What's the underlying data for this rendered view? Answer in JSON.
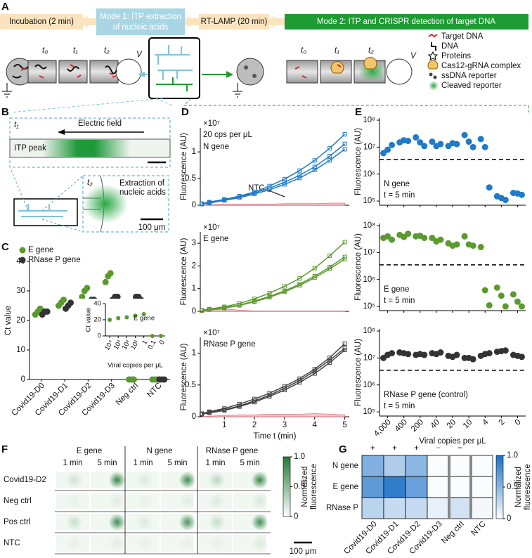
{
  "panel_labels": [
    "A",
    "B",
    "C",
    "D",
    "E",
    "F",
    "G"
  ],
  "panel_a": {
    "steps": [
      "Incubation (2 min)",
      [
        "Mode 1: ITP extraction",
        "of nucleic acids"
      ],
      "RT-LAMP (20 min)",
      "Mode 2: ITP and CRISPR detection of target DNA"
    ],
    "mode1_times": [
      "t₀",
      "t₁",
      "t₂"
    ],
    "mode2_times": [
      "t₀",
      "t₁",
      "t₂"
    ],
    "voltage": [
      "V",
      "V"
    ],
    "legend": [
      "Target DNA",
      "DNA",
      "Proteins",
      "Cas12-gRNA complex",
      "ssDNA reporter",
      "Cleaved reporter"
    ]
  },
  "panel_b": {
    "time_top": "t₁",
    "field": "Electric field",
    "peak": "ITP peak",
    "time_bottom": "t₂",
    "extraction": [
      "Extraction of",
      "nucleic acids"
    ],
    "scale": "100 μm"
  },
  "panel_f": {
    "columns": [
      "E gene",
      "N gene",
      "RNase P gene"
    ],
    "times": [
      "1 min",
      "5 min",
      "1 min",
      "5 min",
      "1 min",
      "5 min"
    ],
    "rows": [
      "Covid19-D2",
      "Neg ctrl",
      "Pos ctrl",
      "NTC"
    ],
    "intensity": [
      [
        0.15,
        0.9,
        0.1,
        0.85,
        0.25,
        0.9
      ],
      [
        0.05,
        0.08,
        0.05,
        0.07,
        0.1,
        0.12
      ],
      [
        0.2,
        0.85,
        0.1,
        0.8,
        0.2,
        0.85
      ],
      [
        0.05,
        0.08,
        0.05,
        0.06,
        0.05,
        0.1
      ]
    ],
    "color": "#1f7a35",
    "colorbar_ticks": [
      0,
      0.5,
      {
        "value": 1,
        "label": "1.0"
      }
    ],
    "colorbar_label": [
      "Normalized",
      "fluorescence"
    ],
    "scale": "100 μm"
  },
  "chart_data": [
    {
      "type": "scatter",
      "ylabel": "Ct value",
      "categories": [
        "Covid19-D0",
        "Covid19-D1",
        "Covid19-D2",
        "Covid19-D3",
        "Neg ctrl",
        "NTC"
      ],
      "series": [
        {
          "name": "E gene",
          "color": "#5a9a2e",
          "values": [
            [
              22,
              23,
              24
            ],
            [
              25,
              26,
              27
            ],
            [
              28,
              30,
              31
            ],
            [
              33,
              35,
              36
            ],
            [
              0,
              0,
              0
            ],
            [
              0,
              0,
              0
            ]
          ]
        },
        {
          "name": "RNase P gene",
          "color": "#333333",
          "values": [
            [
              22,
              23,
              23
            ],
            [
              24,
              25,
              26
            ],
            [
              26,
              27,
              27
            ],
            [
              27,
              28,
              28
            ],
            [
              28,
              28,
              27
            ],
            [
              0,
              0,
              0
            ]
          ]
        }
      ],
      "ylim": [
        0,
        40
      ],
      "yticks": [
        0,
        10,
        20,
        30,
        40
      ]
    },
    {
      "type": "scatter",
      "ylabel": "Ct value",
      "xlabel": "Viral copies per μL",
      "note": "E gene",
      "categories": [
        "10⁴",
        "10³",
        "10²",
        "10¹",
        "1",
        "0.1",
        "0"
      ],
      "values": [
        20,
        22,
        23,
        25,
        27,
        0,
        0
      ],
      "color": "#5a9a2e",
      "ylim": [
        0,
        40
      ],
      "yticks": [
        0,
        20,
        40
      ]
    },
    {
      "type": "line",
      "multiplier": "×10⁷",
      "notes": [
        "20 cps per μL",
        "N gene"
      ],
      "ylabel": "Fluorescence (AU)",
      "x": [
        0.25,
        0.5,
        1,
        1.5,
        2,
        2.5,
        3,
        3.5,
        4,
        4.5,
        5
      ],
      "series": [
        {
          "color": "#1f7bc9",
          "values": [
            0.03,
            0.06,
            0.11,
            0.17,
            0.25,
            0.36,
            0.49,
            0.65,
            0.84,
            1.07,
            1.33
          ]
        },
        {
          "color": "#1f7bc9",
          "values": [
            0.02,
            0.05,
            0.1,
            0.16,
            0.23,
            0.32,
            0.43,
            0.56,
            0.72,
            0.92,
            1.15
          ]
        },
        {
          "color": "#1f7bc9",
          "values": [
            0.02,
            0.04,
            0.09,
            0.14,
            0.21,
            0.29,
            0.39,
            0.51,
            0.66,
            0.84,
            1.05
          ]
        }
      ],
      "area": {
        "label": "NTC",
        "color": "#f4b6bb",
        "values": [
          0,
          0.01,
          0.02,
          0.02,
          0.02,
          0.02,
          0.03,
          0.03,
          0.03,
          0.04,
          0.04
        ]
      },
      "xlim": [
        0.2,
        5.15
      ],
      "ylim": [
        0,
        1.45
      ],
      "yticks": [
        0,
        0.5,
        1
      ]
    },
    {
      "type": "line",
      "multiplier": "×10⁷",
      "notes": [
        "E gene"
      ],
      "ylabel": "Fluorescence (AU)",
      "x": [
        0.25,
        0.5,
        1,
        1.5,
        2,
        2.5,
        3,
        3.5,
        4,
        4.5,
        5
      ],
      "series": [
        {
          "color": "#5a9a2e",
          "values": [
            0.05,
            0.1,
            0.2,
            0.35,
            0.55,
            0.8,
            1.1,
            1.45,
            1.9,
            2.45,
            3.05
          ]
        },
        {
          "color": "#5a9a2e",
          "values": [
            0.04,
            0.08,
            0.16,
            0.28,
            0.45,
            0.66,
            0.9,
            1.2,
            1.55,
            1.95,
            2.4
          ]
        },
        {
          "color": "#5a9a2e",
          "values": [
            0.03,
            0.07,
            0.14,
            0.26,
            0.42,
            0.62,
            0.86,
            1.14,
            1.48,
            1.87,
            2.3
          ]
        }
      ],
      "area": {
        "color": "#f4b6bb",
        "values": [
          0,
          0.05,
          0.1,
          0.05,
          0.02,
          0.02,
          0.02,
          0.02,
          0.02,
          0.02,
          0.02
        ]
      },
      "xlim": [
        0.2,
        5.15
      ],
      "ylim": [
        0,
        3.5
      ],
      "yticks": [
        0,
        1,
        2,
        3
      ]
    },
    {
      "type": "line",
      "multiplier": "×10⁷",
      "notes": [
        "RNase P gene"
      ],
      "ylabel": "Fluorescence (AU)",
      "xlabel": "Time t (min)",
      "x": [
        0.25,
        0.5,
        1,
        1.5,
        2,
        2.5,
        3,
        3.5,
        4,
        4.5,
        5
      ],
      "series": [
        {
          "color": "#444444",
          "values": [
            0.05,
            0.08,
            0.13,
            0.2,
            0.28,
            0.37,
            0.48,
            0.6,
            0.75,
            0.93,
            1.15
          ]
        },
        {
          "color": "#444444",
          "values": [
            0.04,
            0.07,
            0.11,
            0.17,
            0.25,
            0.34,
            0.45,
            0.57,
            0.72,
            0.89,
            1.08
          ]
        },
        {
          "color": "#444444",
          "values": [
            0.04,
            0.06,
            0.1,
            0.16,
            0.23,
            0.32,
            0.42,
            0.54,
            0.68,
            0.85,
            1.05
          ]
        }
      ],
      "area": {
        "color": "#f4b6bb",
        "values": [
          0,
          0.01,
          0.02,
          0.03,
          0.03,
          0.04,
          0.04,
          0.04,
          0.05,
          0.04,
          0.03
        ]
      },
      "xlim": [
        0.2,
        5.15
      ],
      "ylim": [
        0,
        1.25
      ],
      "yticks": [
        0,
        0.5,
        1
      ],
      "xticks": [
        1,
        2,
        3,
        4,
        5
      ]
    },
    {
      "type": "scatter",
      "log": true,
      "ylabel": "Fluorescence (AU)",
      "notes": [
        "N gene",
        "t = 5 min"
      ],
      "categories": [
        null,
        null,
        null,
        null,
        null,
        null,
        null,
        null,
        null
      ],
      "values": [
        [
          6000000,
          8000000,
          12000000
        ],
        [
          15000000,
          18000000,
          17000000
        ],
        [
          23000000,
          15000000,
          11000000
        ],
        [
          16000000,
          11000000,
          13000000
        ],
        [
          11000000,
          14000000,
          13000000
        ],
        [
          28000000,
          16000000,
          10000000
        ],
        [
          20000000,
          10000000,
          320000
        ],
        [
          150000,
          130000,
          110000
        ],
        [
          200000,
          190000,
          170000
        ]
      ],
      "color": "#1f7bc9",
      "threshold": 3500000,
      "ylim": [
        70000,
        120000000
      ],
      "yticks": [
        {
          "value": 100000,
          "label": "10⁵"
        },
        {
          "value": 1000000,
          "label": "10⁶"
        },
        {
          "value": 10000000,
          "label": "10⁷"
        },
        {
          "value": 100000000,
          "label": "10⁸"
        }
      ]
    },
    {
      "type": "scatter",
      "log": true,
      "ylabel": "Fluorescence (AU)",
      "notes": [
        "E gene",
        "t = 5 min"
      ],
      "categories": [
        null,
        null,
        null,
        null,
        null,
        null,
        null,
        null,
        null
      ],
      "values": [
        [
          35000000,
          40000000,
          30000000
        ],
        [
          45000000,
          38000000,
          50000000
        ],
        [
          40000000,
          42000000,
          35000000
        ],
        [
          35000000,
          26000000,
          30000000
        ],
        [
          22000000,
          18000000,
          20000000
        ],
        [
          40000000,
          20000000,
          18000000
        ],
        [
          16000000,
          400000,
          110000
        ],
        [
          500000,
          250000,
          100000
        ],
        [
          280000,
          150000,
          100000
        ]
      ],
      "color": "#5a9a2e",
      "threshold": 3500000,
      "ylim": [
        70000,
        120000000
      ],
      "yticks": [
        {
          "value": 100000,
          "label": "10⁵"
        },
        {
          "value": 1000000,
          "label": "10⁶"
        },
        {
          "value": 10000000,
          "label": "10⁷"
        },
        {
          "value": 100000000,
          "label": "10⁸"
        }
      ]
    },
    {
      "type": "scatter",
      "log": true,
      "ylabel": "Fluorescence (AU)",
      "xlabel": "Viral copies per μL",
      "notes": [
        "RNase P gene (control)",
        "t = 5 min"
      ],
      "categories": [
        "4,000",
        "400",
        "200",
        "40",
        "20",
        "10",
        "4",
        "2",
        "0"
      ],
      "values": [
        [
          10000000,
          13000000,
          15000000
        ],
        [
          16000000,
          15000000,
          14000000
        ],
        [
          13000000,
          14000000,
          13000000
        ],
        [
          15000000,
          14000000,
          16000000
        ],
        [
          12000000,
          11000000,
          13000000
        ],
        [
          10000000,
          10000000,
          9000000
        ],
        [
          12000000,
          14000000,
          15000000
        ],
        [
          17000000,
          18000000,
          19000000
        ],
        [
          13000000,
          12000000,
          11000000
        ]
      ],
      "color": "#333333",
      "threshold": 3500000,
      "ylim": [
        70000,
        120000000
      ],
      "yticks": [
        {
          "value": 100000,
          "label": "10⁵"
        },
        {
          "value": 1000000,
          "label": "10⁶"
        },
        {
          "value": 10000000,
          "label": "10⁷"
        },
        {
          "value": 100000000,
          "label": "10⁸"
        }
      ]
    },
    {
      "type": "heatmap",
      "categories": [
        "Covid19-D0",
        "Covid19-D1",
        "Covid19-D2",
        "Covid19-D3",
        "Neg ctrl",
        "NTC"
      ],
      "rows": [
        "N gene",
        "E gene",
        "RNase P"
      ],
      "values": [
        [
          0.55,
          0.35,
          0.5,
          0.02,
          0.02,
          0.02
        ],
        [
          0.7,
          0.9,
          0.65,
          0.02,
          0.02,
          0.02
        ],
        [
          0.3,
          0.25,
          0.25,
          0.1,
          0.2,
          0.05
        ]
      ],
      "signs": [
        "+",
        "+",
        "+",
        "−",
        "−",
        null
      ],
      "sign_colors": [
        "#000000",
        "#000000",
        "#000000",
        "#e0282e",
        "#000000",
        null
      ],
      "colormap": [
        "#ffffff",
        "#1a6fc6"
      ],
      "colorbar_ticks": [
        0,
        0.5,
        {
          "value": 1,
          "label": "1.0"
        }
      ],
      "colorbar_label": [
        "Normalized",
        "fluorescence"
      ]
    }
  ]
}
